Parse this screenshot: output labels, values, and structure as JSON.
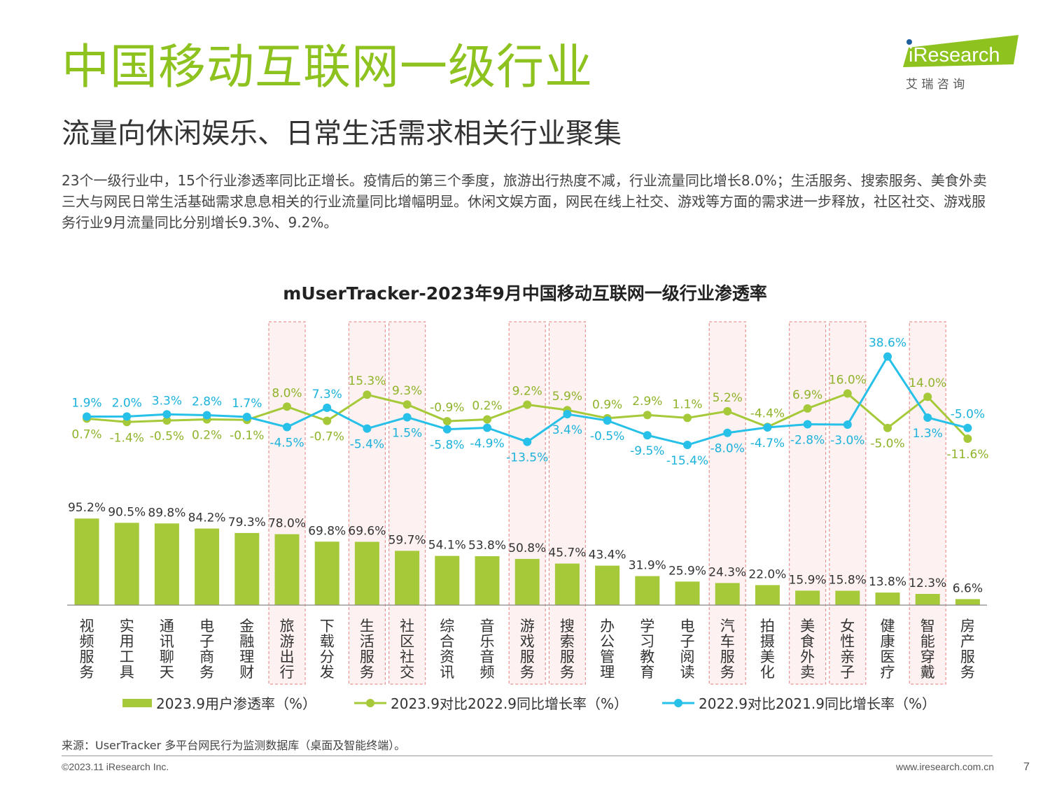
{
  "header": {
    "title": "中国移动互联网一级行业",
    "subtitle": "流量向休闲娱乐、日常生活需求相关行业聚集",
    "body": "23个一级行业中，15个行业渗透率同比正增长。疫情后的第三个季度，旅游出行热度不减，行业流量同比增长8.0%；生活服务、搜索服务、美食外卖三大与网民日常生活基础需求息息相关的行业流量同比增幅明显。休闲文娱方面，网民在线上社交、游戏等方面的需求进一步释放，社区社交、游戏服务行业9月流量同比分别增长9.3%、9.2%。"
  },
  "logo": {
    "brand": "iResearch",
    "cn": "艾 瑞 咨 询",
    "green": "#8dc21f",
    "blue": "#1f5f9e"
  },
  "colors": {
    "bar": "#a6c939",
    "line_green": "#a6c939",
    "line_blue": "#27c0e8",
    "highlight_border": "#e89595",
    "highlight_fill": "#fdf1f1"
  },
  "chart_data": {
    "type": "bar",
    "title": "mUserTracker-2023年9月中国移动互联网一级行业渗透率",
    "categories": [
      "视频服务",
      "实用工具",
      "通讯聊天",
      "电子商务",
      "金融理财",
      "旅游出行",
      "下载分发",
      "生活服务",
      "社区社交",
      "综合资讯",
      "音乐音频",
      "游戏服务",
      "搜索服务",
      "办公管理",
      "学习教育",
      "电子阅读",
      "汽车服务",
      "拍摄美化",
      "美食外卖",
      "女性亲子",
      "健康医疗",
      "智能穿戴",
      "房产服务"
    ],
    "highlighted": [
      "旅游出行",
      "生活服务",
      "社区社交",
      "游戏服务",
      "搜索服务",
      "汽车服务",
      "美食外卖",
      "女性亲子",
      "智能穿戴"
    ],
    "series": [
      {
        "name": "2023.9用户渗透率（%）",
        "type": "bar",
        "values": [
          95.2,
          90.5,
          89.8,
          84.2,
          79.3,
          78.0,
          69.8,
          69.6,
          59.7,
          54.1,
          53.8,
          50.8,
          45.7,
          43.4,
          31.9,
          25.9,
          24.3,
          22.0,
          15.9,
          15.8,
          13.8,
          12.3,
          6.6
        ]
      },
      {
        "name": "2023.9对比2022.9同比增长率（%）",
        "type": "line",
        "values": [
          0.7,
          -1.4,
          -0.5,
          0.2,
          -0.1,
          8.0,
          -0.7,
          15.3,
          9.3,
          -0.9,
          0.2,
          9.2,
          5.9,
          0.9,
          2.9,
          1.1,
          5.2,
          -4.4,
          6.9,
          16.0,
          -5.0,
          14.0,
          -11.6
        ]
      },
      {
        "name": "2022.9对比2021.9同比增长率（%）",
        "type": "line",
        "values": [
          1.9,
          2.0,
          3.3,
          2.8,
          1.7,
          -4.5,
          7.3,
          -5.4,
          1.5,
          -5.8,
          -4.9,
          -13.5,
          3.4,
          -0.5,
          -9.5,
          -15.4,
          -8.0,
          -4.7,
          -2.8,
          -3.0,
          38.6,
          1.3,
          -5.0
        ]
      }
    ],
    "legend_position": "bottom",
    "grid": false
  },
  "footer": {
    "source": "来源：UserTracker 多平台网民行为监测数据库（桌面及智能终端）。",
    "copyright": "©2023.11 iResearch Inc.",
    "website": "www.iresearch.com.cn",
    "page": "7"
  }
}
